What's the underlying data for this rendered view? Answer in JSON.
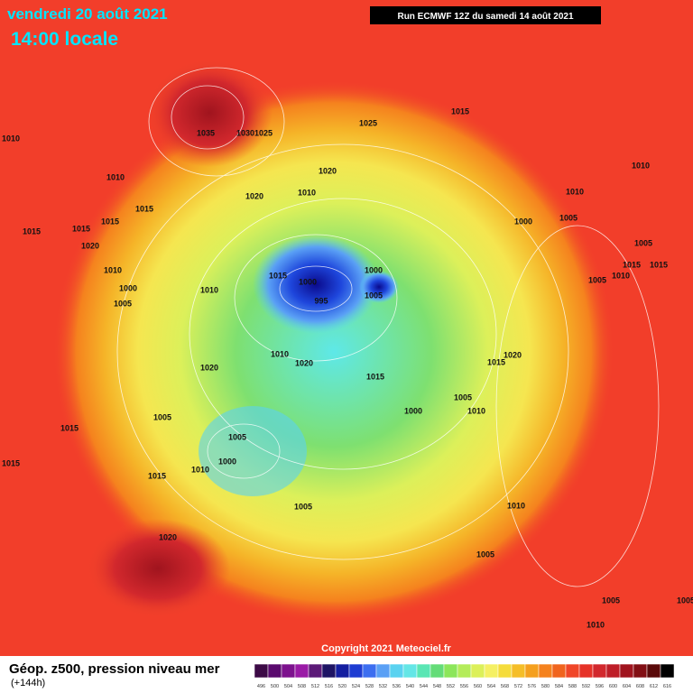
{
  "header": {
    "date": "vendredi 20 août 2021",
    "time": "14:00 locale",
    "run": "Run ECMWF 12Z du samedi 14 août 2021"
  },
  "footer": {
    "title": "Géop. z500, pression niveau mer",
    "lead": "(+144h)",
    "copyright": "Copyright 2021 Meteociel.fr"
  },
  "legend": {
    "levels": [
      496,
      500,
      504,
      508,
      512,
      516,
      520,
      524,
      528,
      532,
      536,
      540,
      544,
      548,
      552,
      556,
      560,
      564,
      568,
      572,
      576,
      580,
      584,
      588,
      592,
      596,
      600,
      604,
      608,
      612,
      616
    ],
    "colors": [
      "#3c0a46",
      "#5a0a6e",
      "#7d128e",
      "#9a1aa6",
      "#5c1a78",
      "#1e1464",
      "#141ea0",
      "#1e3cd2",
      "#3c6ef0",
      "#5aa0f5",
      "#5ad2f0",
      "#64e6e6",
      "#5ae6b4",
      "#64dc78",
      "#8ce65a",
      "#b4ec5a",
      "#dcf05a",
      "#f5f064",
      "#f5dc3c",
      "#f5be28",
      "#f5a01e",
      "#f5821e",
      "#f0641e",
      "#f04628",
      "#e63228",
      "#d2282d",
      "#be1e28",
      "#a0141e",
      "#820f14",
      "#5a0a0a",
      "#000000"
    ]
  },
  "isobar_labels": [
    "1035",
    "1030",
    "1025",
    "1025",
    "1015",
    "1010",
    "1010",
    "1015",
    "1020",
    "1010",
    "1020",
    "1010",
    "1010",
    "1000",
    "1005",
    "1015",
    "1015",
    "1015",
    "1020",
    "1010",
    "1000",
    "1005",
    "1010",
    "1015",
    "1000",
    "995",
    "1000",
    "1005",
    "1005",
    "1015",
    "1015",
    "1005",
    "1010",
    "1020",
    "1010",
    "1020",
    "1015",
    "1020",
    "1015",
    "1005",
    "1010",
    "1000",
    "1005",
    "1015",
    "1005",
    "1000",
    "1010",
    "1015",
    "1015",
    "1005",
    "1010",
    "1020",
    "1005",
    "1005",
    "1005",
    "1010"
  ]
}
